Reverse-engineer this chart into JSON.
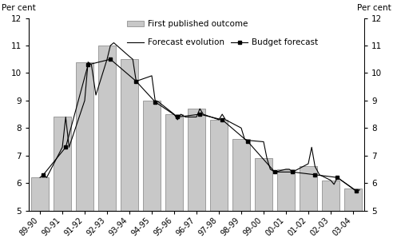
{
  "categories": [
    "89-90",
    "90-91",
    "91-92",
    "92-93",
    "93-94",
    "94-95",
    "95-96",
    "96-97",
    "97-98",
    "98-99",
    "99-00",
    "00-01",
    "01-02",
    "02-03",
    "03-04"
  ],
  "bar_values": [
    6.2,
    8.4,
    10.4,
    11.0,
    10.5,
    9.0,
    8.5,
    8.7,
    8.3,
    7.6,
    6.9,
    6.5,
    6.6,
    6.1,
    5.8
  ],
  "bar_color": "#c8c8c8",
  "bar_edgecolor": "#808080",
  "forecast_evolution_x": [
    0,
    0.15,
    0.3,
    1,
    1.15,
    1.3,
    2,
    2.15,
    2.3,
    2.5,
    3,
    3.15,
    3.3,
    4,
    4.15,
    4.3,
    5,
    5.15,
    5.3,
    6,
    6.15,
    6.3,
    6.5,
    7,
    7.15,
    7.3,
    8,
    8.15,
    8.3,
    9,
    9.15,
    9.3,
    10,
    10.15,
    10.3,
    10.5,
    11,
    11.15,
    11.3,
    12,
    12.15,
    12.3,
    12.5,
    13,
    13.15,
    13.3,
    14,
    14.15,
    14.3
  ],
  "forecast_evolution_y": [
    6.2,
    6.3,
    6.2,
    7.3,
    8.4,
    7.3,
    9.0,
    10.4,
    10.3,
    9.2,
    10.5,
    11.0,
    11.1,
    10.6,
    10.5,
    9.7,
    9.9,
    9.0,
    8.95,
    8.5,
    8.3,
    8.5,
    8.4,
    8.4,
    8.7,
    8.5,
    8.3,
    8.5,
    8.3,
    8.0,
    7.6,
    7.55,
    7.5,
    6.9,
    6.5,
    6.4,
    6.5,
    6.5,
    6.4,
    6.7,
    7.3,
    6.6,
    6.3,
    6.1,
    5.95,
    6.2,
    5.8,
    5.7,
    5.75
  ],
  "budget_forecast_x": [
    0.15,
    1.15,
    2.15,
    3.15,
    4.3,
    5.15,
    6.15,
    7.15,
    8.15,
    9.3,
    10.5,
    11.3,
    12.3,
    13.3,
    14.15
  ],
  "budget_forecast_y": [
    6.3,
    7.3,
    10.3,
    10.5,
    9.7,
    8.95,
    8.4,
    8.5,
    8.3,
    7.5,
    6.4,
    6.4,
    6.3,
    6.2,
    5.7
  ],
  "line_color": "#000000",
  "marker_color": "#000000",
  "ylabel_left": "Per cent",
  "ylabel_right": "Per cent",
  "ylim": [
    5,
    12
  ],
  "yticks": [
    5,
    6,
    7,
    8,
    9,
    10,
    11,
    12
  ],
  "legend_labels": [
    "First published outcome",
    "Forecast evolution",
    "Budget forecast"
  ],
  "background_color": "#ffffff"
}
